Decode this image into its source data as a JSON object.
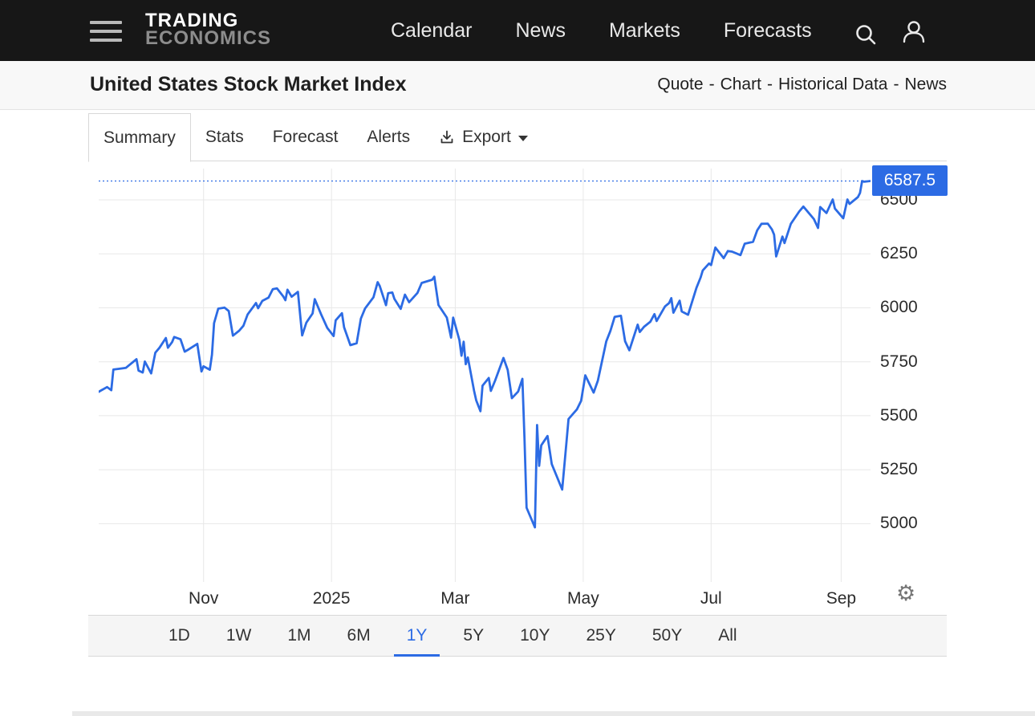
{
  "colors": {
    "accent": "#2c6be4",
    "nav_bg": "#171717",
    "grid": "#e8e8e8"
  },
  "icons": {
    "settings": "⚙",
    "menu": "hamburger",
    "search": "magnifier",
    "user": "person",
    "export": "download-arrow"
  },
  "nav": {
    "logo_line1": "TRADING",
    "logo_line2": "ECONOMICS",
    "items": [
      "Calendar",
      "News",
      "Markets",
      "Forecasts"
    ]
  },
  "header": {
    "title": "United States Stock Market Index",
    "links": [
      "Quote",
      "Chart",
      "Historical Data",
      "News"
    ],
    "separator": "-"
  },
  "tabs": {
    "items": [
      "Summary",
      "Stats",
      "Forecast",
      "Alerts"
    ],
    "active": "Summary",
    "export_label": "Export"
  },
  "ranges": {
    "items": [
      "1D",
      "1W",
      "1M",
      "6M",
      "1Y",
      "5Y",
      "10Y",
      "25Y",
      "50Y",
      "All"
    ],
    "active": "1Y"
  },
  "chart_data": {
    "type": "line",
    "title": "United States Stock Market Index",
    "series_name": "US Stock Market Index",
    "xlabel": "",
    "ylabel": "",
    "grid": true,
    "line_color": "#2c6be4",
    "last_value": 6587.5,
    "last_value_label": "6587.5",
    "ylim": [
      4730,
      6645
    ],
    "x_domain": [
      "2024-09-12",
      "2025-09-15"
    ],
    "yticks": [
      5000,
      5250,
      5500,
      5750,
      6000,
      6250,
      6500
    ],
    "xticks": [
      {
        "label": "Nov",
        "date": "2024-11-01"
      },
      {
        "label": "2025",
        "date": "2025-01-01"
      },
      {
        "label": "Mar",
        "date": "2025-03-01"
      },
      {
        "label": "May",
        "date": "2025-05-01"
      },
      {
        "label": "Jul",
        "date": "2025-07-01"
      },
      {
        "label": "Sep",
        "date": "2025-09-01"
      }
    ],
    "points": [
      [
        "2024-09-12",
        5611
      ],
      [
        "2024-09-16",
        5633
      ],
      [
        "2024-09-18",
        5618
      ],
      [
        "2024-09-19",
        5714
      ],
      [
        "2024-09-23",
        5719
      ],
      [
        "2024-09-25",
        5722
      ],
      [
        "2024-09-27",
        5738
      ],
      [
        "2024-09-30",
        5762
      ],
      [
        "2024-10-01",
        5709
      ],
      [
        "2024-10-03",
        5700
      ],
      [
        "2024-10-04",
        5751
      ],
      [
        "2024-10-07",
        5696
      ],
      [
        "2024-10-09",
        5792
      ],
      [
        "2024-10-11",
        5815
      ],
      [
        "2024-10-14",
        5860
      ],
      [
        "2024-10-15",
        5815
      ],
      [
        "2024-10-17",
        5841
      ],
      [
        "2024-10-18",
        5865
      ],
      [
        "2024-10-21",
        5854
      ],
      [
        "2024-10-23",
        5797
      ],
      [
        "2024-10-25",
        5808
      ],
      [
        "2024-10-29",
        5833
      ],
      [
        "2024-10-31",
        5705
      ],
      [
        "2024-11-01",
        5729
      ],
      [
        "2024-11-04",
        5713
      ],
      [
        "2024-11-05",
        5783
      ],
      [
        "2024-11-06",
        5929
      ],
      [
        "2024-11-08",
        5996
      ],
      [
        "2024-11-11",
        6001
      ],
      [
        "2024-11-13",
        5985
      ],
      [
        "2024-11-15",
        5871
      ],
      [
        "2024-11-18",
        5894
      ],
      [
        "2024-11-20",
        5917
      ],
      [
        "2024-11-22",
        5969
      ],
      [
        "2024-11-26",
        6022
      ],
      [
        "2024-11-27",
        5998
      ],
      [
        "2024-11-29",
        6032
      ],
      [
        "2024-12-02",
        6047
      ],
      [
        "2024-12-04",
        6086
      ],
      [
        "2024-12-06",
        6090
      ],
      [
        "2024-12-09",
        6053
      ],
      [
        "2024-12-10",
        6035
      ],
      [
        "2024-12-11",
        6084
      ],
      [
        "2024-12-13",
        6051
      ],
      [
        "2024-12-16",
        6074
      ],
      [
        "2024-12-18",
        5872
      ],
      [
        "2024-12-20",
        5931
      ],
      [
        "2024-12-23",
        5974
      ],
      [
        "2024-12-24",
        6040
      ],
      [
        "2024-12-27",
        5971
      ],
      [
        "2024-12-30",
        5907
      ],
      [
        "2025-01-02",
        5869
      ],
      [
        "2025-01-03",
        5942
      ],
      [
        "2025-01-06",
        5975
      ],
      [
        "2025-01-07",
        5909
      ],
      [
        "2025-01-10",
        5827
      ],
      [
        "2025-01-13",
        5836
      ],
      [
        "2025-01-15",
        5950
      ],
      [
        "2025-01-17",
        5997
      ],
      [
        "2025-01-21",
        6049
      ],
      [
        "2025-01-23",
        6119
      ],
      [
        "2025-01-24",
        6101
      ],
      [
        "2025-01-27",
        6012
      ],
      [
        "2025-01-28",
        6068
      ],
      [
        "2025-01-30",
        6071
      ],
      [
        "2025-01-31",
        6041
      ],
      [
        "2025-02-03",
        5995
      ],
      [
        "2025-02-05",
        6061
      ],
      [
        "2025-02-07",
        6026
      ],
      [
        "2025-02-11",
        6069
      ],
      [
        "2025-02-13",
        6115
      ],
      [
        "2025-02-18",
        6130
      ],
      [
        "2025-02-19",
        6144
      ],
      [
        "2025-02-21",
        6013
      ],
      [
        "2025-02-25",
        5955
      ],
      [
        "2025-02-27",
        5862
      ],
      [
        "2025-02-28",
        5955
      ],
      [
        "2025-03-03",
        5850
      ],
      [
        "2025-03-04",
        5778
      ],
      [
        "2025-03-05",
        5843
      ],
      [
        "2025-03-06",
        5739
      ],
      [
        "2025-03-07",
        5770
      ],
      [
        "2025-03-10",
        5615
      ],
      [
        "2025-03-11",
        5572
      ],
      [
        "2025-03-13",
        5521
      ],
      [
        "2025-03-14",
        5639
      ],
      [
        "2025-03-17",
        5675
      ],
      [
        "2025-03-18",
        5615
      ],
      [
        "2025-03-20",
        5663
      ],
      [
        "2025-03-24",
        5768
      ],
      [
        "2025-03-26",
        5712
      ],
      [
        "2025-03-28",
        5581
      ],
      [
        "2025-03-31",
        5612
      ],
      [
        "2025-04-02",
        5671
      ],
      [
        "2025-04-03",
        5396
      ],
      [
        "2025-04-04",
        5074
      ],
      [
        "2025-04-08",
        4983
      ],
      [
        "2025-04-09",
        5457
      ],
      [
        "2025-04-10",
        5268
      ],
      [
        "2025-04-11",
        5363
      ],
      [
        "2025-04-14",
        5406
      ],
      [
        "2025-04-16",
        5276
      ],
      [
        "2025-04-21",
        5158
      ],
      [
        "2025-04-23",
        5376
      ],
      [
        "2025-04-24",
        5485
      ],
      [
        "2025-04-28",
        5529
      ],
      [
        "2025-04-30",
        5569
      ],
      [
        "2025-05-02",
        5687
      ],
      [
        "2025-05-06",
        5607
      ],
      [
        "2025-05-08",
        5663
      ],
      [
        "2025-05-12",
        5844
      ],
      [
        "2025-05-14",
        5893
      ],
      [
        "2025-05-16",
        5958
      ],
      [
        "2025-05-19",
        5963
      ],
      [
        "2025-05-21",
        5845
      ],
      [
        "2025-05-23",
        5803
      ],
      [
        "2025-05-27",
        5922
      ],
      [
        "2025-05-28",
        5888
      ],
      [
        "2025-05-30",
        5912
      ],
      [
        "2025-06-02",
        5935
      ],
      [
        "2025-06-04",
        5971
      ],
      [
        "2025-06-05",
        5939
      ],
      [
        "2025-06-09",
        6006
      ],
      [
        "2025-06-11",
        6022
      ],
      [
        "2025-06-12",
        6045
      ],
      [
        "2025-06-13",
        5977
      ],
      [
        "2025-06-16",
        6033
      ],
      [
        "2025-06-17",
        5983
      ],
      [
        "2025-06-20",
        5968
      ],
      [
        "2025-06-24",
        6092
      ],
      [
        "2025-06-26",
        6141
      ],
      [
        "2025-06-27",
        6173
      ],
      [
        "2025-06-30",
        6205
      ],
      [
        "2025-07-01",
        6198
      ],
      [
        "2025-07-03",
        6279
      ],
      [
        "2025-07-07",
        6230
      ],
      [
        "2025-07-09",
        6263
      ],
      [
        "2025-07-11",
        6260
      ],
      [
        "2025-07-15",
        6244
      ],
      [
        "2025-07-17",
        6297
      ],
      [
        "2025-07-21",
        6306
      ],
      [
        "2025-07-23",
        6359
      ],
      [
        "2025-07-25",
        6389
      ],
      [
        "2025-07-28",
        6390
      ],
      [
        "2025-07-30",
        6363
      ],
      [
        "2025-07-31",
        6339
      ],
      [
        "2025-08-01",
        6238
      ],
      [
        "2025-08-04",
        6330
      ],
      [
        "2025-08-05",
        6300
      ],
      [
        "2025-08-08",
        6389
      ],
      [
        "2025-08-12",
        6446
      ],
      [
        "2025-08-14",
        6469
      ],
      [
        "2025-08-19",
        6411
      ],
      [
        "2025-08-21",
        6370
      ],
      [
        "2025-08-22",
        6467
      ],
      [
        "2025-08-25",
        6439
      ],
      [
        "2025-08-27",
        6481
      ],
      [
        "2025-08-28",
        6502
      ],
      [
        "2025-08-29",
        6460
      ],
      [
        "2025-09-02",
        6415
      ],
      [
        "2025-09-04",
        6502
      ],
      [
        "2025-09-05",
        6481
      ],
      [
        "2025-09-09",
        6513
      ],
      [
        "2025-09-10",
        6532
      ],
      [
        "2025-09-11",
        6587
      ],
      [
        "2025-09-12",
        6584
      ],
      [
        "2025-09-15",
        6587.5
      ]
    ]
  }
}
